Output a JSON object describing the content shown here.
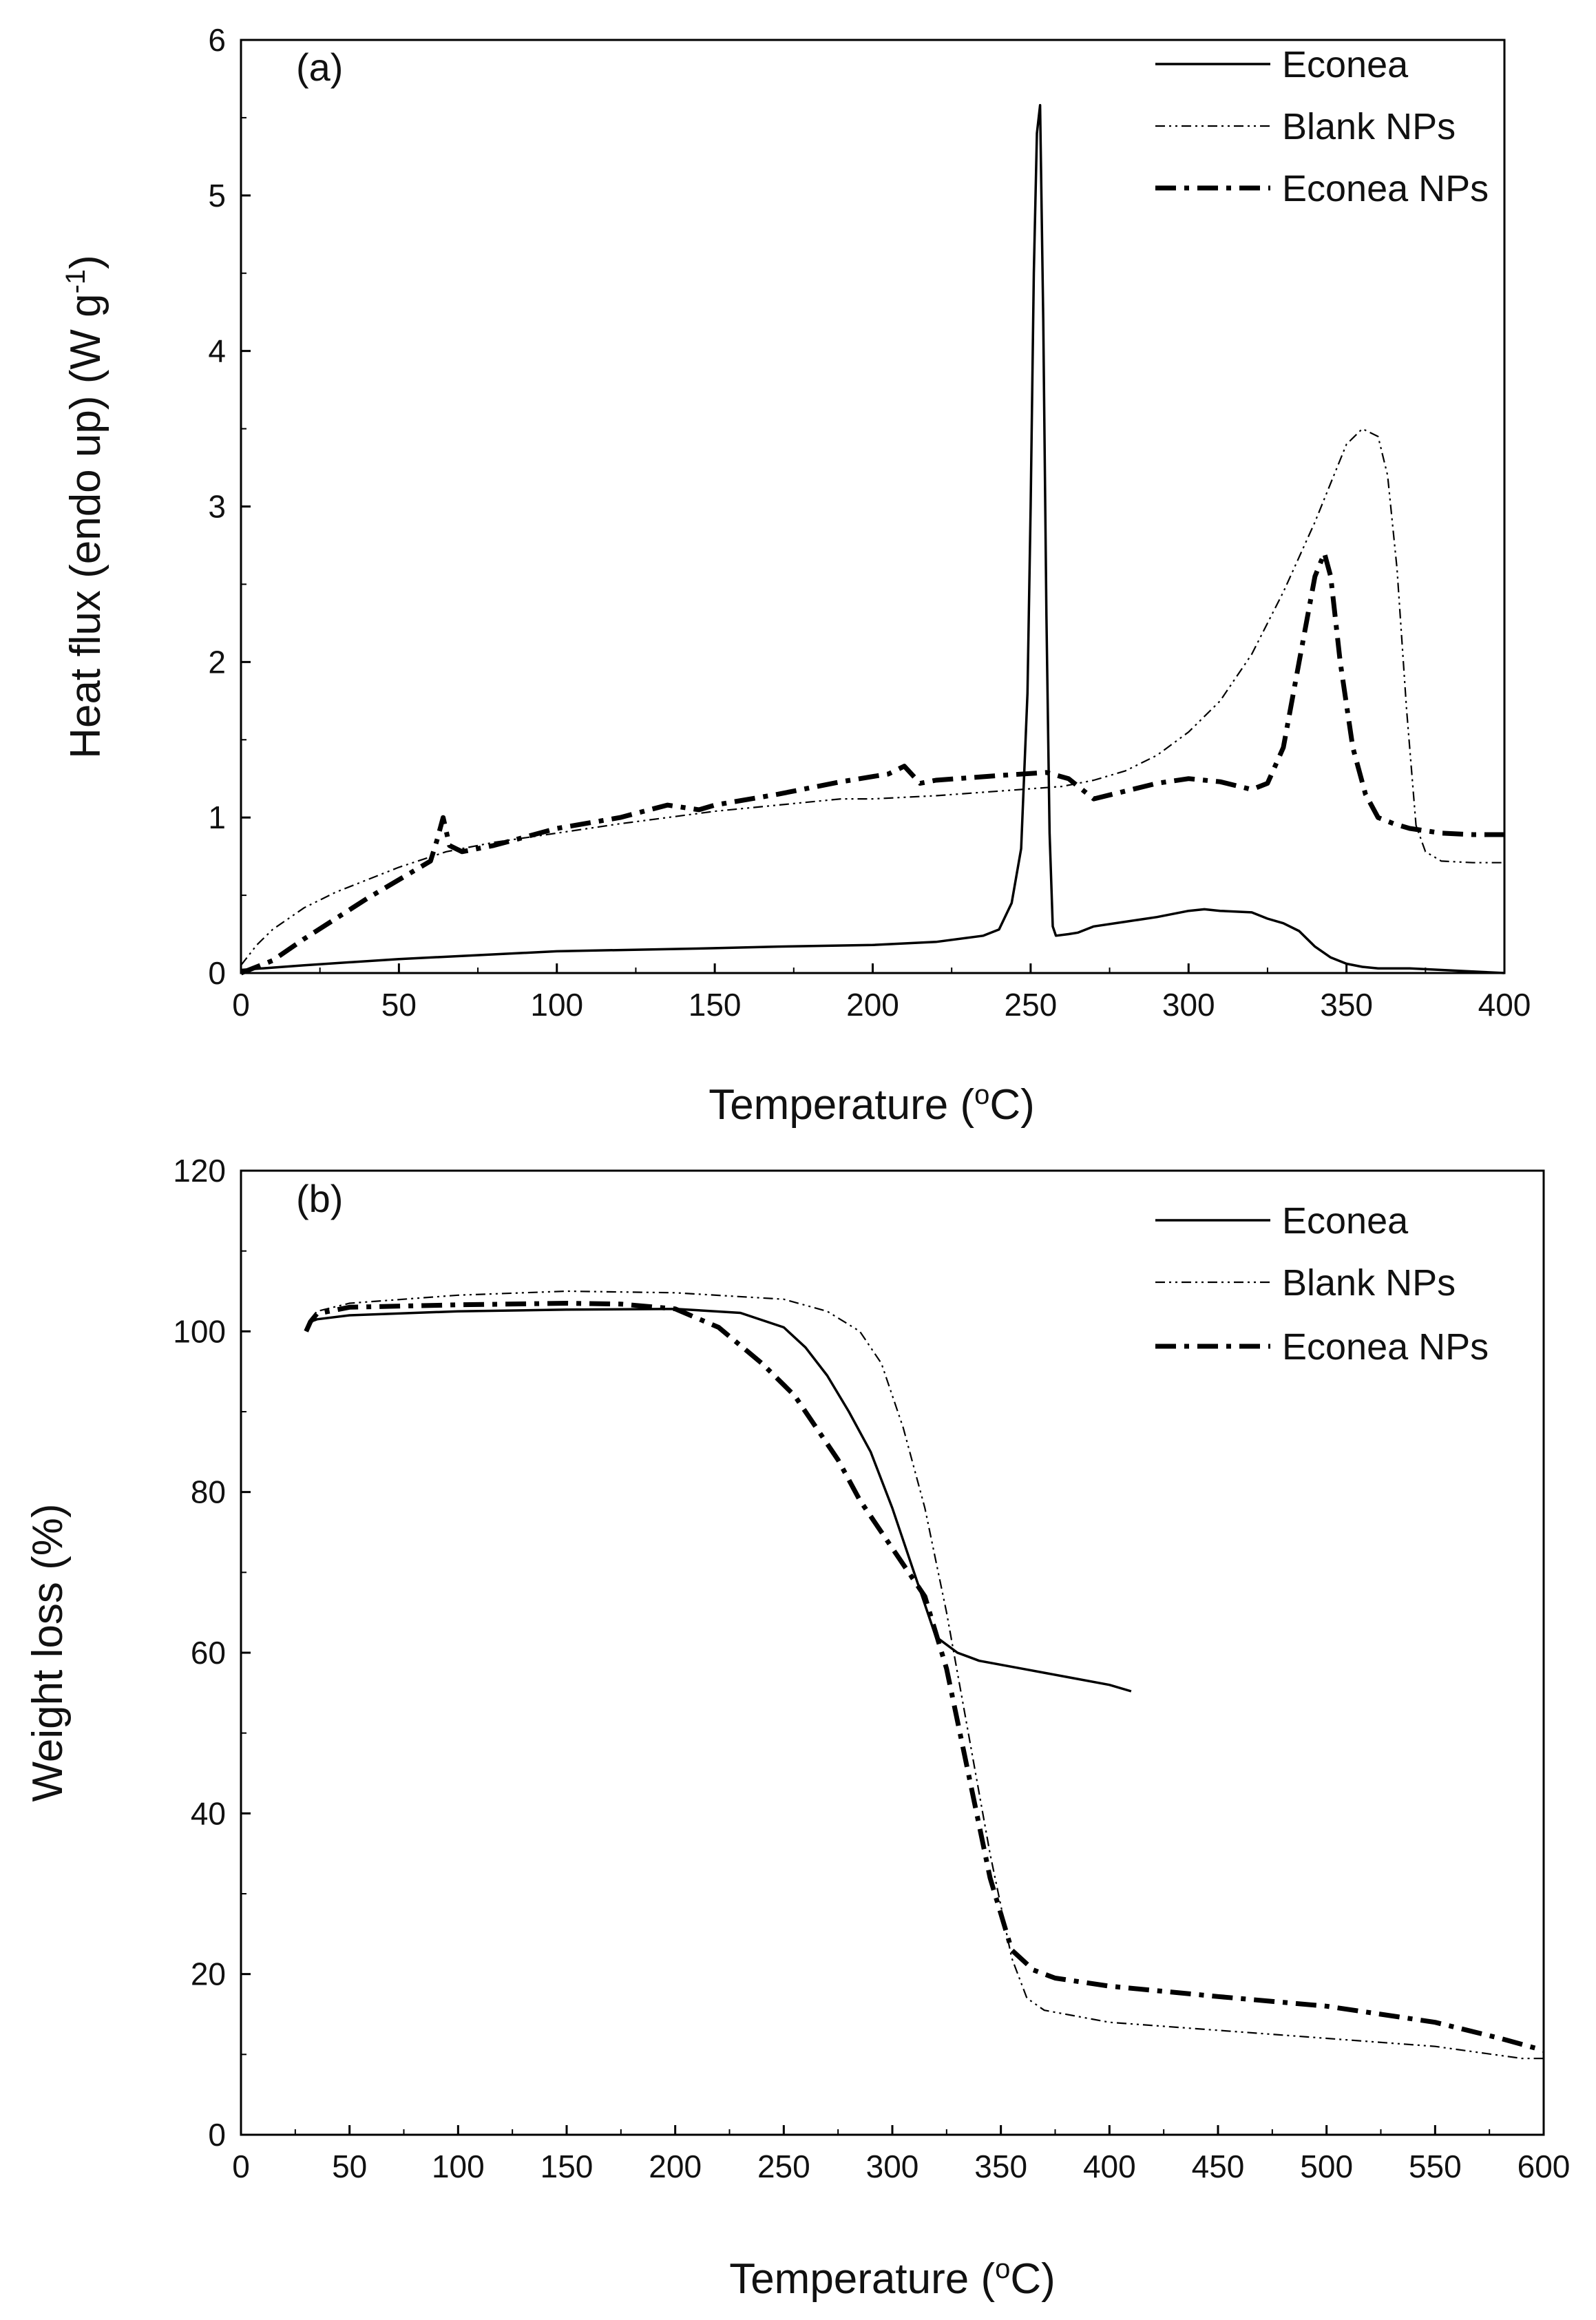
{
  "figure": {
    "description_panels": [
      "(a)",
      "(b)"
    ]
  },
  "chart_data": [
    {
      "type": "line",
      "panel_label": "(a)",
      "title": "",
      "xlabel": "Temperature (",
      "xlabel_sup": "o",
      "xlabel_tail": "C)",
      "ylabel": "Heat flux (endo up) (W g",
      "ylabel_sup": "-1",
      "ylabel_tail": ")",
      "xlim": [
        0,
        400
      ],
      "ylim": [
        0,
        6
      ],
      "xticks": [
        0,
        50,
        100,
        150,
        200,
        250,
        300,
        350,
        400
      ],
      "yticks": [
        0,
        1,
        2,
        3,
        4,
        5,
        6
      ],
      "legend_position": "top-right",
      "series": [
        {
          "name": "Econea",
          "style": "solid",
          "x": [
            0,
            20,
            50,
            100,
            150,
            170,
            200,
            220,
            235,
            240,
            244,
            247,
            249,
            250,
            251,
            252,
            253,
            254,
            255,
            256,
            257,
            258,
            262,
            265,
            270,
            280,
            290,
            300,
            305,
            310,
            320,
            325,
            330,
            335,
            340,
            345,
            350,
            355,
            360,
            370,
            380,
            390,
            400
          ],
          "y": [
            0.02,
            0.05,
            0.09,
            0.14,
            0.16,
            0.17,
            0.18,
            0.2,
            0.24,
            0.28,
            0.45,
            0.8,
            1.8,
            3.0,
            4.5,
            5.4,
            5.58,
            4.2,
            2.3,
            0.9,
            0.3,
            0.24,
            0.25,
            0.26,
            0.3,
            0.33,
            0.36,
            0.4,
            0.41,
            0.4,
            0.39,
            0.35,
            0.32,
            0.27,
            0.17,
            0.1,
            0.06,
            0.04,
            0.03,
            0.03,
            0.02,
            0.01,
            0.0
          ]
        },
        {
          "name": "Blank NPs",
          "style": "dash-dot-dot-thin",
          "x": [
            0,
            5,
            10,
            20,
            30,
            50,
            65,
            80,
            100,
            120,
            135,
            150,
            170,
            190,
            200,
            220,
            240,
            260,
            270,
            280,
            290,
            300,
            310,
            320,
            330,
            340,
            345,
            350,
            355,
            360,
            363,
            366,
            369,
            372,
            375,
            380,
            390,
            400
          ],
          "y": [
            0.05,
            0.18,
            0.28,
            0.42,
            0.52,
            0.68,
            0.78,
            0.84,
            0.9,
            0.96,
            1.0,
            1.04,
            1.08,
            1.12,
            1.12,
            1.14,
            1.17,
            1.2,
            1.24,
            1.3,
            1.4,
            1.55,
            1.75,
            2.05,
            2.45,
            2.9,
            3.15,
            3.4,
            3.5,
            3.45,
            3.2,
            2.6,
            1.7,
            0.95,
            0.78,
            0.72,
            0.71,
            0.71
          ],
          "labels": []
        },
        {
          "name": "Econea NPs",
          "style": "dash-dot-thick",
          "x": [
            0,
            10,
            20,
            40,
            60,
            62,
            64,
            66,
            70,
            80,
            100,
            120,
            135,
            145,
            150,
            170,
            190,
            205,
            210,
            215,
            220,
            240,
            255,
            262,
            270,
            280,
            290,
            300,
            310,
            320,
            325,
            330,
            335,
            340,
            343,
            345,
            348,
            352,
            356,
            360,
            365,
            370,
            380,
            390,
            400
          ],
          "y": [
            0.0,
            0.08,
            0.22,
            0.48,
            0.72,
            0.85,
            1.0,
            0.82,
            0.78,
            0.82,
            0.93,
            1.0,
            1.08,
            1.05,
            1.08,
            1.15,
            1.23,
            1.28,
            1.33,
            1.22,
            1.24,
            1.27,
            1.29,
            1.25,
            1.12,
            1.17,
            1.22,
            1.25,
            1.23,
            1.18,
            1.22,
            1.45,
            2.0,
            2.55,
            2.7,
            2.55,
            2.0,
            1.45,
            1.15,
            1.0,
            0.96,
            0.93,
            0.9,
            0.89,
            0.89
          ],
          "labels": []
        }
      ]
    },
    {
      "type": "line",
      "panel_label": "(b)",
      "title": "",
      "xlabel": "Temperature (",
      "xlabel_sup": "o",
      "xlabel_tail": "C)",
      "ylabel": "Weight loss (%)",
      "xlim": [
        0,
        600
      ],
      "ylim": [
        0,
        120
      ],
      "xticks": [
        0,
        50,
        100,
        150,
        200,
        250,
        300,
        350,
        400,
        450,
        500,
        550,
        600
      ],
      "yticks": [
        0,
        20,
        40,
        60,
        80,
        100,
        120
      ],
      "legend_position": "top-right",
      "series": [
        {
          "name": "Econea",
          "style": "solid",
          "x": [
            30,
            32,
            35,
            50,
            100,
            150,
            200,
            230,
            250,
            260,
            270,
            280,
            290,
            300,
            310,
            320,
            330,
            335,
            340,
            360,
            380,
            400,
            410
          ],
          "y": [
            100,
            101.2,
            101.5,
            102,
            102.5,
            102.7,
            102.8,
            102.3,
            100.5,
            98,
            94.5,
            90,
            85,
            78,
            70,
            62,
            60,
            59.5,
            59,
            58,
            57,
            56,
            55.2
          ]
        },
        {
          "name": "Blank NPs",
          "style": "dash-dot-dot-thin",
          "x": [
            30,
            32,
            35,
            50,
            100,
            150,
            200,
            250,
            270,
            285,
            295,
            305,
            315,
            325,
            335,
            345,
            355,
            362,
            370,
            400,
            450,
            500,
            550,
            590,
            600
          ],
          "y": [
            100,
            101.5,
            102.5,
            103.5,
            104.5,
            105,
            104.8,
            104,
            102.5,
            100,
            96,
            88,
            78,
            65,
            50,
            35,
            22,
            17,
            15.5,
            14,
            13,
            12,
            11,
            9.5,
            9.5
          ]
        },
        {
          "name": "Econea NPs",
          "style": "dash-dot-thick",
          "x": [
            30,
            32,
            35,
            50,
            100,
            150,
            175,
            200,
            220,
            240,
            255,
            265,
            275,
            285,
            300,
            315,
            325,
            335,
            345,
            355,
            365,
            375,
            400,
            450,
            500,
            550,
            580,
            600
          ],
          "y": [
            100,
            101.2,
            102.2,
            103,
            103.3,
            103.5,
            103.4,
            102.8,
            100.5,
            96,
            92,
            88,
            84,
            79,
            73,
            67,
            58,
            45,
            32,
            23,
            20.5,
            19.5,
            18.5,
            17.2,
            16,
            14,
            12,
            10.5
          ]
        }
      ]
    }
  ]
}
